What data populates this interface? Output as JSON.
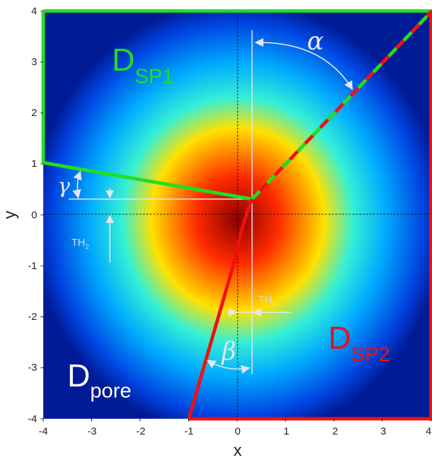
{
  "axes": {
    "xlabel": "x",
    "ylabel": "y",
    "xticks": [
      "-4",
      "-3",
      "-2",
      "-1",
      "0",
      "1",
      "2",
      "3",
      "4"
    ],
    "yticks": [
      "4",
      "3",
      "2",
      "1",
      "0",
      "-1",
      "-2",
      "-3",
      "-4"
    ],
    "xlim": [
      -4,
      4
    ],
    "ylim": [
      -4,
      4
    ]
  },
  "regions": {
    "sp1": {
      "main": "D",
      "sub": "SP1",
      "color": "#22dd22"
    },
    "sp2": {
      "main": "D",
      "sub": "SP2",
      "color": "#ee1111"
    },
    "pore": {
      "main": "D",
      "sub": "pore",
      "color": "#ffffff"
    }
  },
  "annotations": {
    "alpha": "α",
    "beta": "β",
    "gamma": "γ",
    "th1": {
      "main": "TH",
      "sub": "1"
    },
    "th2": {
      "main": "TH",
      "sub": "2"
    }
  },
  "colormap": [
    "#8b0000",
    "#ff2a00",
    "#ffe100",
    "#35f0d5",
    "#00aaff",
    "#0044e0",
    "#001b96"
  ]
}
